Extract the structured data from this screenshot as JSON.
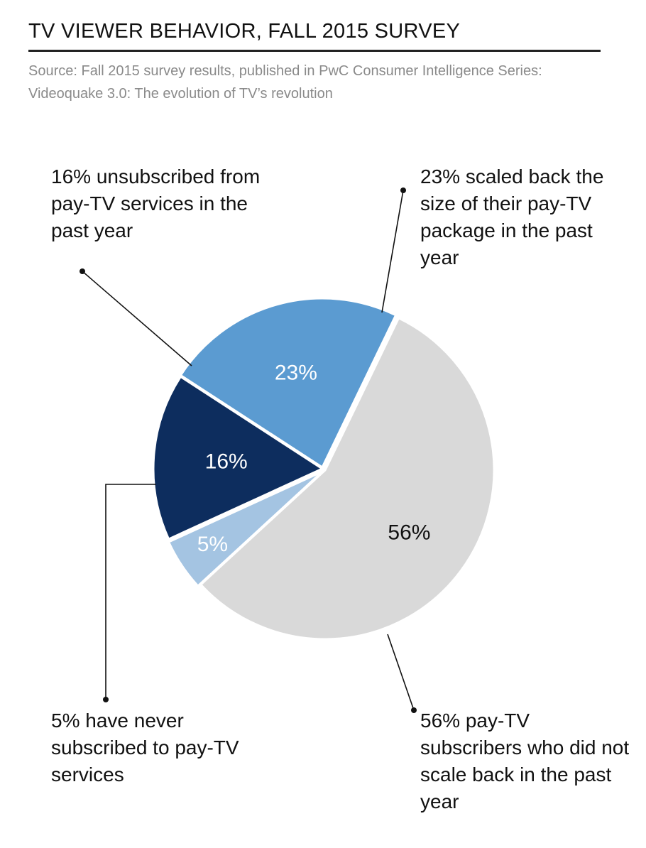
{
  "header": {
    "title": "TV VIEWER BEHAVIOR, FALL 2015 SURVEY",
    "subtitle": "Source: Fall 2015 survey results, published in PwC Consumer Intelligence Series: Videoquake 3.0: The evolution of TV’s revolution"
  },
  "chart_data": {
    "type": "pie",
    "title": "TV VIEWER BEHAVIOR, FALL 2015 SURVEY",
    "unit": "%",
    "slices": [
      {
        "value": 23,
        "label": "23%",
        "callout": "23% scaled back the size of their pay-TV package in the past year",
        "color": "#5b9bd1",
        "label_color": "#ffffff"
      },
      {
        "value": 56,
        "label": "56%",
        "callout": "56% pay-TV subscribers who did not scale back in the past year",
        "color": "#d9d9d9",
        "label_color": "#111111"
      },
      {
        "value": 5,
        "label": "5%",
        "callout": "5% have never subscribed to pay-TV services",
        "color": "#a4c4e2",
        "label_color": "#ffffff"
      },
      {
        "value": 16,
        "label": "16%",
        "callout": "16% unsubscribed from pay-TV services in the past year",
        "color": "#0d2d5e",
        "label_color": "#ffffff"
      }
    ]
  }
}
